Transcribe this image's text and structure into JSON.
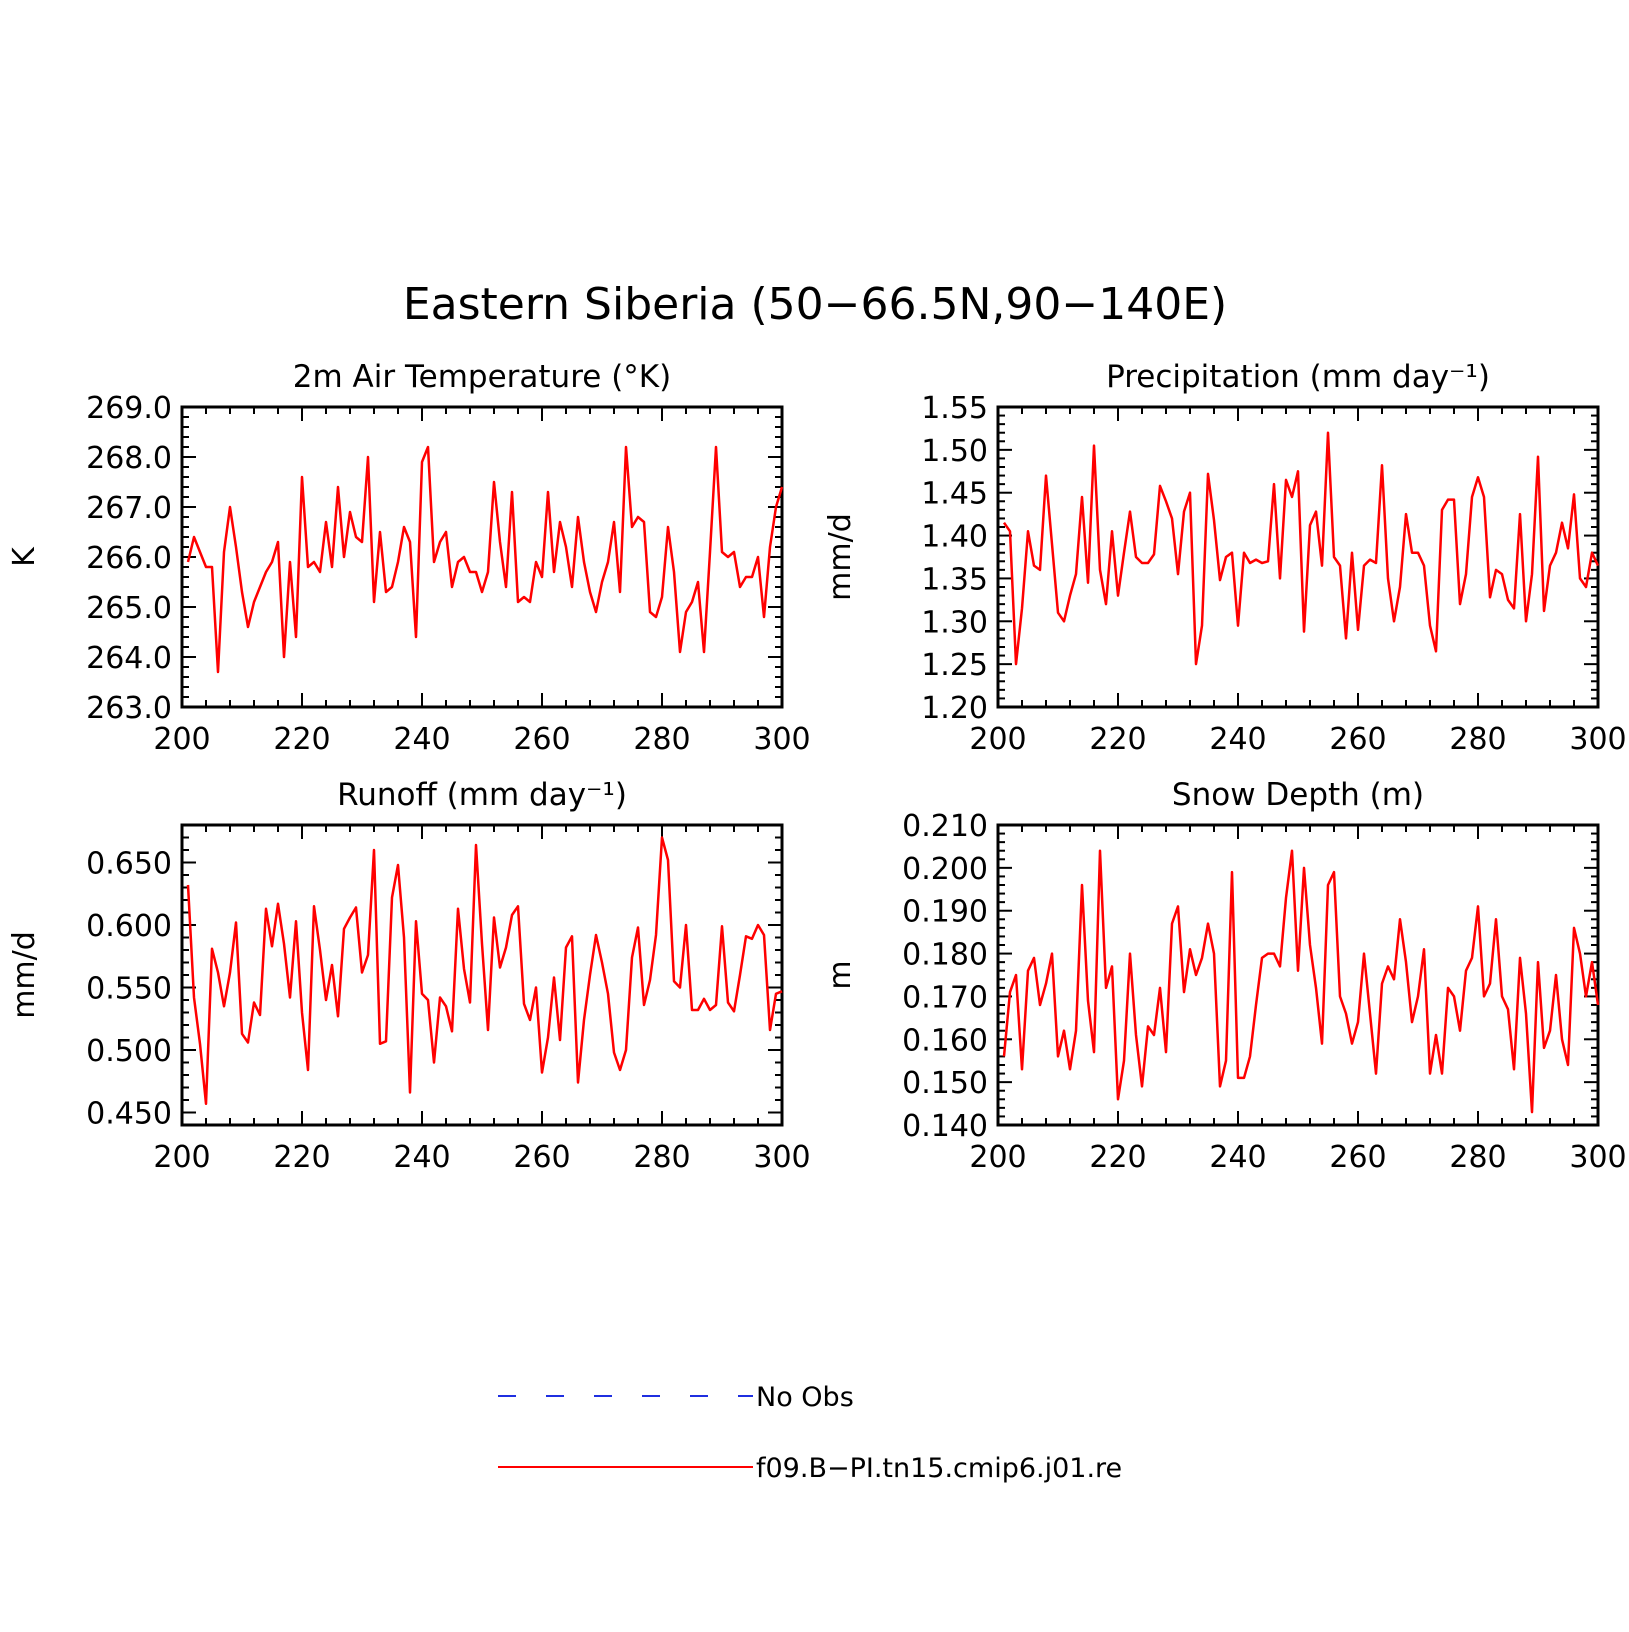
{
  "figure": {
    "title": "Eastern Siberia (50−66.5N,90−140E)"
  },
  "legend": {
    "items": [
      {
        "label": "No Obs",
        "color": "#1f2fe0",
        "style": "dashed"
      },
      {
        "label": "f09.B−PI.tn15.cmip6.j01.re",
        "color": "#ff0000",
        "style": "solid"
      }
    ]
  },
  "chart_data": [
    {
      "type": "line",
      "title": "2m Air Temperature (°K)",
      "ylabel": "K",
      "xlim": [
        200,
        300
      ],
      "ylim": [
        263.0,
        269.0
      ],
      "xticks": [
        "200",
        "220",
        "240",
        "260",
        "280",
        "300"
      ],
      "yticks": [
        "263.0",
        "264.0",
        "265.0",
        "266.0",
        "267.0",
        "268.0",
        "269.0"
      ],
      "x_start": 201,
      "series": [
        {
          "name": "f09.B−PI.tn15.cmip6.j01.re",
          "color": "#ff0000",
          "values": [
            265.9,
            266.4,
            266.1,
            265.8,
            265.8,
            263.7,
            266.1,
            267.0,
            266.2,
            265.3,
            264.6,
            265.1,
            265.4,
            265.7,
            265.9,
            266.3,
            264.0,
            265.9,
            264.4,
            267.6,
            265.8,
            265.9,
            265.7,
            266.7,
            265.8,
            267.4,
            266.0,
            266.9,
            266.4,
            266.3,
            268.0,
            265.1,
            266.5,
            265.3,
            265.4,
            265.9,
            266.6,
            266.3,
            264.4,
            267.9,
            268.2,
            265.9,
            266.3,
            266.5,
            265.4,
            265.9,
            266.0,
            265.7,
            265.7,
            265.3,
            265.7,
            267.5,
            266.3,
            265.4,
            267.3,
            265.1,
            265.2,
            265.1,
            265.9,
            265.6,
            267.3,
            265.7,
            266.7,
            266.2,
            265.4,
            266.8,
            265.9,
            265.3,
            264.9,
            265.5,
            265.9,
            266.7,
            265.3,
            268.2,
            266.6,
            266.8,
            266.7,
            264.9,
            264.8,
            265.2,
            266.6,
            265.7,
            264.1,
            264.9,
            265.1,
            265.5,
            264.1,
            266.1,
            268.2,
            266.1,
            266.0,
            266.1,
            265.4,
            265.6,
            265.6,
            266.0,
            264.8,
            266.2,
            267.0,
            267.4
          ]
        }
      ]
    },
    {
      "type": "line",
      "title": "Precipitation (mm day⁻¹)",
      "ylabel": "mm/d",
      "xlim": [
        200,
        300
      ],
      "ylim": [
        1.2,
        1.55
      ],
      "xticks": [
        "200",
        "220",
        "240",
        "260",
        "280",
        "300"
      ],
      "yticks": [
        "1.20",
        "1.25",
        "1.30",
        "1.35",
        "1.40",
        "1.45",
        "1.50",
        "1.55"
      ],
      "x_start": 201,
      "series": [
        {
          "name": "f09.B−PI.tn15.cmip6.j01.re",
          "color": "#ff0000",
          "values": [
            1.415,
            1.405,
            1.25,
            1.315,
            1.405,
            1.365,
            1.36,
            1.47,
            1.39,
            1.31,
            1.3,
            1.33,
            1.355,
            1.445,
            1.345,
            1.505,
            1.36,
            1.32,
            1.405,
            1.33,
            1.38,
            1.428,
            1.375,
            1.368,
            1.368,
            1.378,
            1.458,
            1.44,
            1.42,
            1.355,
            1.428,
            1.45,
            1.25,
            1.295,
            1.472,
            1.418,
            1.348,
            1.375,
            1.38,
            1.295,
            1.38,
            1.368,
            1.372,
            1.368,
            1.37,
            1.46,
            1.35,
            1.465,
            1.445,
            1.475,
            1.288,
            1.412,
            1.428,
            1.365,
            1.52,
            1.375,
            1.365,
            1.28,
            1.38,
            1.29,
            1.365,
            1.372,
            1.368,
            1.482,
            1.35,
            1.3,
            1.34,
            1.425,
            1.38,
            1.38,
            1.365,
            1.295,
            1.265,
            1.43,
            1.442,
            1.442,
            1.32,
            1.355,
            1.445,
            1.468,
            1.445,
            1.328,
            1.36,
            1.355,
            1.325,
            1.315,
            1.425,
            1.3,
            1.355,
            1.492,
            1.312,
            1.365,
            1.38,
            1.415,
            1.385,
            1.448,
            1.35,
            1.34,
            1.38,
            1.365
          ]
        }
      ]
    },
    {
      "type": "line",
      "title": "Runoff (mm day⁻¹)",
      "ylabel": "mm/d",
      "xlim": [
        200,
        300
      ],
      "ylim": [
        0.44,
        0.68
      ],
      "xticks": [
        "200",
        "220",
        "240",
        "260",
        "280",
        "300"
      ],
      "yticks": [
        "0.450",
        "0.500",
        "0.550",
        "0.600",
        "0.650"
      ],
      "x_start": 201,
      "series": [
        {
          "name": "f09.B−PI.tn15.cmip6.j01.re",
          "color": "#ff0000",
          "values": [
            0.632,
            0.542,
            0.505,
            0.457,
            0.581,
            0.562,
            0.535,
            0.562,
            0.602,
            0.513,
            0.506,
            0.538,
            0.528,
            0.613,
            0.583,
            0.617,
            0.585,
            0.542,
            0.603,
            0.53,
            0.484,
            0.615,
            0.58,
            0.54,
            0.568,
            0.527,
            0.597,
            0.606,
            0.614,
            0.562,
            0.576,
            0.66,
            0.505,
            0.507,
            0.622,
            0.648,
            0.59,
            0.466,
            0.603,
            0.545,
            0.54,
            0.49,
            0.542,
            0.535,
            0.515,
            0.613,
            0.565,
            0.538,
            0.664,
            0.585,
            0.516,
            0.606,
            0.566,
            0.582,
            0.608,
            0.615,
            0.537,
            0.524,
            0.55,
            0.482,
            0.51,
            0.558,
            0.508,
            0.582,
            0.591,
            0.474,
            0.524,
            0.56,
            0.592,
            0.57,
            0.545,
            0.498,
            0.484,
            0.5,
            0.574,
            0.598,
            0.536,
            0.556,
            0.592,
            0.67,
            0.652,
            0.555,
            0.55,
            0.6,
            0.532,
            0.532,
            0.541,
            0.532,
            0.536,
            0.599,
            0.538,
            0.531,
            0.56,
            0.591,
            0.589,
            0.6,
            0.592,
            0.516,
            0.545,
            0.547
          ]
        }
      ]
    },
    {
      "type": "line",
      "title": "Snow Depth (m)",
      "ylabel": "m",
      "xlim": [
        200,
        300
      ],
      "ylim": [
        0.14,
        0.21
      ],
      "xticks": [
        "200",
        "220",
        "240",
        "260",
        "280",
        "300"
      ],
      "yticks": [
        "0.140",
        "0.150",
        "0.160",
        "0.170",
        "0.180",
        "0.190",
        "0.200",
        "0.210"
      ],
      "x_start": 201,
      "series": [
        {
          "name": "f09.B−PI.tn15.cmip6.j01.re",
          "color": "#ff0000",
          "values": [
            0.156,
            0.171,
            0.175,
            0.153,
            0.176,
            0.179,
            0.168,
            0.173,
            0.18,
            0.156,
            0.162,
            0.153,
            0.162,
            0.196,
            0.169,
            0.157,
            0.204,
            0.172,
            0.177,
            0.146,
            0.155,
            0.18,
            0.161,
            0.149,
            0.163,
            0.161,
            0.172,
            0.157,
            0.187,
            0.191,
            0.171,
            0.181,
            0.175,
            0.179,
            0.187,
            0.18,
            0.149,
            0.155,
            0.199,
            0.151,
            0.151,
            0.156,
            0.168,
            0.179,
            0.18,
            0.18,
            0.177,
            0.193,
            0.204,
            0.176,
            0.2,
            0.182,
            0.172,
            0.159,
            0.196,
            0.199,
            0.17,
            0.166,
            0.159,
            0.164,
            0.18,
            0.166,
            0.152,
            0.173,
            0.177,
            0.174,
            0.188,
            0.178,
            0.164,
            0.17,
            0.181,
            0.152,
            0.161,
            0.152,
            0.172,
            0.17,
            0.162,
            0.176,
            0.179,
            0.191,
            0.17,
            0.173,
            0.188,
            0.17,
            0.167,
            0.153,
            0.179,
            0.166,
            0.143,
            0.178,
            0.158,
            0.162,
            0.175,
            0.16,
            0.154,
            0.186,
            0.18,
            0.17,
            0.178,
            0.168
          ]
        }
      ]
    }
  ]
}
